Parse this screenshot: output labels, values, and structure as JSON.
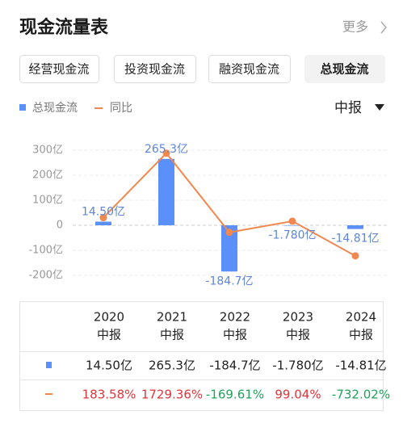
{
  "header": {
    "title": "现金流量表",
    "more": "更多"
  },
  "tabs": [
    "经营现金流",
    "投资现金流",
    "融资现金流",
    "总现金流"
  ],
  "selected_tab": 3,
  "period": "中报",
  "chart_data": {
    "type": "bar",
    "categories": [
      "2020",
      "2021",
      "2022",
      "2023",
      "2024"
    ],
    "series": [
      {
        "name": "总现金流",
        "type": "bar",
        "color": "#5b8ff9",
        "values": [
          14.5,
          265.3,
          -184.7,
          -1.78,
          -14.81
        ],
        "value_labels": [
          "14.50亿",
          "265.3亿",
          "-184.7亿",
          "-1.780亿",
          "-14.81亿"
        ]
      },
      {
        "name": "同比",
        "type": "line",
        "axis": "y2",
        "color": "#f0884f",
        "values": [
          183.58,
          1729.36,
          -169.61,
          99.04,
          -732.02
        ],
        "value_labels": [
          "183.58%",
          "1729.36%",
          "-169.61%",
          "99.04%",
          "-732.02%"
        ]
      }
    ],
    "ylim": [
      -200,
      300
    ],
    "yticks": [
      {
        "value": 300,
        "label": "300亿"
      },
      {
        "value": 200,
        "label": "200亿"
      },
      {
        "value": 100,
        "label": "100亿"
      },
      0,
      {
        "value": -100,
        "label": "-100亿"
      },
      {
        "value": -200,
        "label": "-200亿"
      }
    ],
    "y2lim": [
      -1200,
      1800
    ],
    "grid": true,
    "positive_color": "#e0343a",
    "negative_color": "#1fa35a"
  }
}
